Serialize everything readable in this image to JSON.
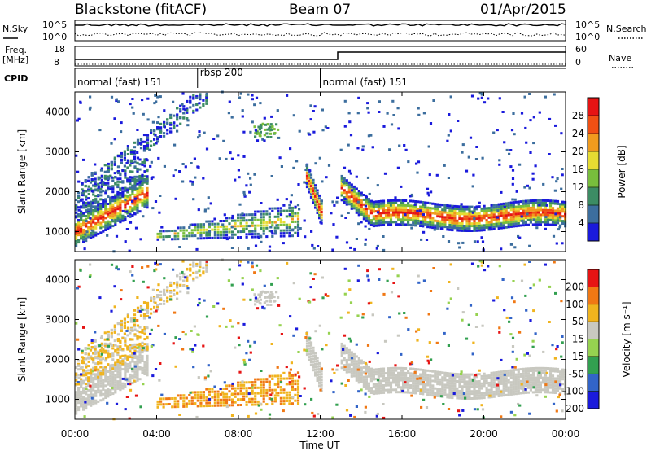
{
  "header": {
    "station": "Blackstone (fitACF)",
    "beam": "Beam 07",
    "date": "01/Apr/2015"
  },
  "summary": {
    "nsky_label": "N.Sky",
    "nsearch_label": "N.Search",
    "noise_ticks": [
      "10^5",
      "10^0"
    ],
    "freq_label": "Freq.",
    "freq_unit": "[MHz]",
    "freq_ticks": [
      "18",
      "8"
    ],
    "nave_label": "Nave",
    "nave_ticks": [
      "60",
      "0"
    ],
    "cpid_label": "CPID"
  },
  "cpid_segments": [
    {
      "label": "normal (fast) 151",
      "start_hour": 0,
      "end_hour": 6
    },
    {
      "label": "rbsp 200",
      "start_hour": 6,
      "end_hour": 12
    },
    {
      "label": "normal (fast) 151",
      "start_hour": 12,
      "end_hour": 24
    }
  ],
  "chart_data": [
    {
      "type": "heatmap",
      "quantity": "power",
      "ylabel": "Slant Range [km]",
      "xlim": [
        0,
        24
      ],
      "ylim": [
        500,
        4500
      ],
      "yticks": [
        "1000",
        "2000",
        "3000",
        "4000"
      ],
      "colorbar": {
        "label": "Power [dB]",
        "ticks": [
          "4",
          "8",
          "12",
          "16",
          "20",
          "24",
          "28"
        ],
        "colors": [
          "#1a1adc",
          "#3c6e9e",
          "#3c8c64",
          "#78be3c",
          "#e6dc32",
          "#f09b1e",
          "#f05014",
          "#e61414"
        ]
      },
      "bands": [
        {
          "name": "main",
          "start_hour": 0.0,
          "end_hour": 3.6,
          "range_start": 1000,
          "range_end": 2000
        },
        {
          "name": "upper",
          "start_hour": 0.3,
          "end_hour": 6.5,
          "range_start": 2000,
          "range_end": 4500
        },
        {
          "name": "mid",
          "start_hour": 4.0,
          "end_hour": 11.0,
          "range_start": 800,
          "range_end": 1550
        },
        {
          "name": "late",
          "start_hour": 13.0,
          "end_hour": 24.0,
          "range_start": 1400,
          "range_end": 1400
        }
      ]
    },
    {
      "type": "heatmap",
      "quantity": "velocity",
      "ylabel": "Slant Range [km]",
      "xlabel": "Time UT",
      "xlim": [
        0,
        24
      ],
      "ylim": [
        500,
        4500
      ],
      "yticks": [
        "1000",
        "2000",
        "3000",
        "4000"
      ],
      "xticks": [
        "00:00",
        "04:00",
        "08:00",
        "12:00",
        "16:00",
        "20:00",
        "00:00"
      ],
      "colorbar": {
        "label": "Velocity [m s⁻¹]",
        "ticks": [
          "200",
          "100",
          "50",
          "15",
          "-15",
          "-50",
          "-100",
          "-200"
        ],
        "colors": [
          "#1a1adc",
          "#3264c8",
          "#32a050",
          "#96d250",
          "#c8c8c0",
          "#f0b41e",
          "#f07814",
          "#e61414"
        ]
      }
    }
  ]
}
